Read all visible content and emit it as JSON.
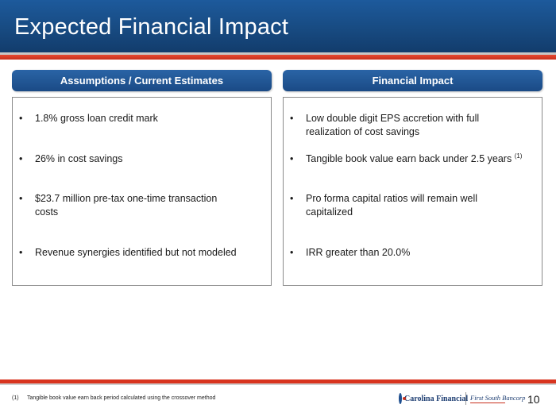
{
  "header": {
    "title": "Expected Financial Impact"
  },
  "left_panel": {
    "heading": "Assumptions / Current Estimates",
    "bullets": [
      "1.8% gross loan credit mark",
      "26% in cost savings",
      "$23.7 million pre-tax one-time transaction costs",
      "Revenue synergies identified but not modeled"
    ]
  },
  "right_panel": {
    "heading": "Financial Impact",
    "bullets": [
      "Low double digit EPS accretion with full realization of cost savings",
      "Tangible book value earn back under 2.5 years",
      "Pro forma capital ratios will remain well capitalized",
      "IRR greater than 20.0%"
    ],
    "bullet2_superscript": "(1)"
  },
  "bullet_glyph": "•",
  "footnote": {
    "number": "(1)",
    "text": "Tangible book value earn back period calculated using the crossover method"
  },
  "logos": {
    "carolina_financial": "Carolina Financial",
    "first_south": "First South Bancorp"
  },
  "page_number": "10",
  "colors": {
    "header_blue": "#17497f",
    "accent_red": "#d8341f"
  }
}
